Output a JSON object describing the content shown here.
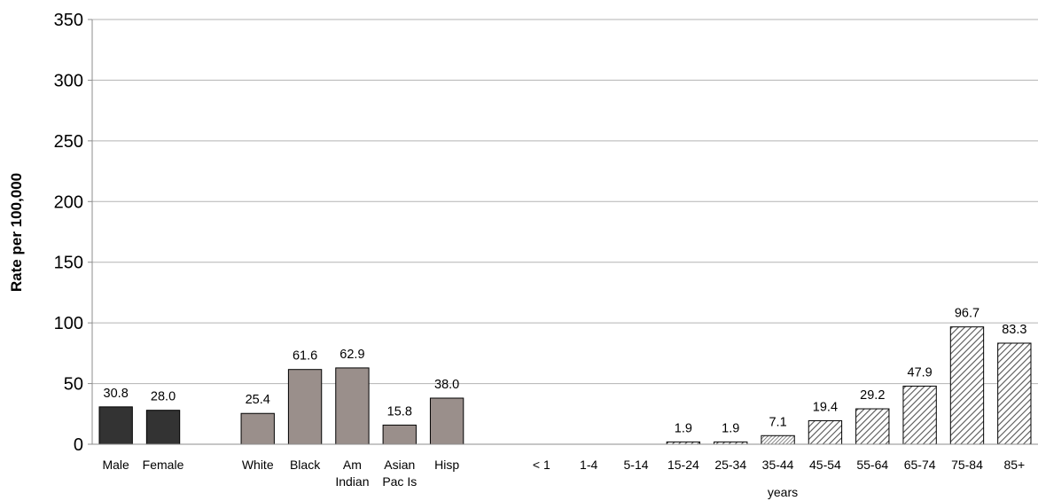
{
  "chart_data": {
    "type": "bar",
    "title": "",
    "ylabel": "Rate per 100,000",
    "xlabel_sub": "years",
    "ylim": [
      0,
      350
    ],
    "yticks": [
      0,
      50,
      100,
      150,
      200,
      250,
      300,
      350
    ],
    "grid": true,
    "legend": "none",
    "colors": {
      "sex": "#333333",
      "race": "#9a8f8b",
      "age_hatch": "#555555"
    },
    "categories": [
      {
        "label": "Male",
        "value": 30.8,
        "group": "sex"
      },
      {
        "label": "Female",
        "value": 28.0,
        "group": "sex"
      },
      {
        "label": "White",
        "value": 25.4,
        "group": "race"
      },
      {
        "label": "Black",
        "value": 61.6,
        "group": "race"
      },
      {
        "label": "Am Indian",
        "lines": [
          "Am",
          "Indian"
        ],
        "value": 62.9,
        "group": "race"
      },
      {
        "label": "Asian Pac Is",
        "lines": [
          "Asian",
          "Pac Is"
        ],
        "value": 15.8,
        "group": "race"
      },
      {
        "label": "Hisp",
        "value": 38.0,
        "group": "race"
      },
      {
        "label": "< 1",
        "value": null,
        "group": "age"
      },
      {
        "label": "1-4",
        "value": null,
        "group": "age"
      },
      {
        "label": "5-14",
        "value": null,
        "group": "age"
      },
      {
        "label": "15-24",
        "value": 1.9,
        "group": "age"
      },
      {
        "label": "25-34",
        "value": 1.9,
        "group": "age"
      },
      {
        "label": "35-44",
        "value": 7.1,
        "group": "age"
      },
      {
        "label": "45-54",
        "value": 19.4,
        "group": "age"
      },
      {
        "label": "55-64",
        "value": 29.2,
        "group": "age"
      },
      {
        "label": "65-74",
        "value": 47.9,
        "group": "age"
      },
      {
        "label": "75-84",
        "value": 96.7,
        "group": "age"
      },
      {
        "label": "85+",
        "value": 83.3,
        "group": "age"
      }
    ]
  }
}
